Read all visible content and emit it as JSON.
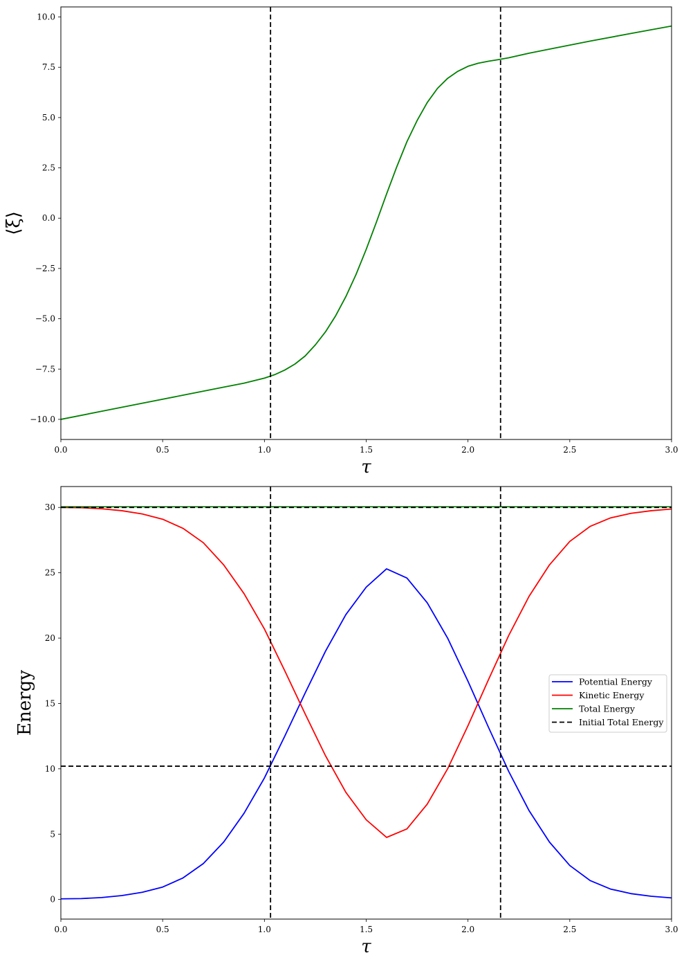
{
  "chart_data": [
    {
      "type": "line",
      "xlabel": "τ",
      "ylabel": "⟨ξ⟩",
      "xlim": [
        0.0,
        3.0
      ],
      "ylim": [
        -11.0,
        10.5
      ],
      "xticks": [
        0.0,
        0.5,
        1.0,
        1.5,
        2.0,
        2.5,
        3.0
      ],
      "xtick_labels": [
        "0.0",
        "0.5",
        "1.0",
        "1.5",
        "2.0",
        "2.5",
        "3.0"
      ],
      "yticks": [
        -10.0,
        -7.5,
        -5.0,
        -2.5,
        0.0,
        2.5,
        5.0,
        7.5,
        10.0
      ],
      "ytick_labels": [
        "−10.0",
        "−7.5",
        "−5.0",
        "−2.5",
        "0.0",
        "2.5",
        "5.0",
        "7.5",
        "10.0"
      ],
      "vlines": [
        1.03,
        2.16
      ],
      "grid": false,
      "series": [
        {
          "color": "#008000",
          "x": [
            0.0,
            0.2,
            0.4,
            0.6,
            0.8,
            0.9,
            1.0,
            1.05,
            1.1,
            1.15,
            1.2,
            1.25,
            1.3,
            1.35,
            1.4,
            1.45,
            1.5,
            1.55,
            1.6,
            1.65,
            1.7,
            1.75,
            1.8,
            1.85,
            1.9,
            1.95,
            2.0,
            2.05,
            2.1,
            2.15,
            2.2,
            2.3,
            2.4,
            2.6,
            2.8,
            3.0
          ],
          "y": [
            -10.0,
            -9.6,
            -9.2,
            -8.8,
            -8.4,
            -8.2,
            -7.95,
            -7.78,
            -7.55,
            -7.25,
            -6.85,
            -6.3,
            -5.65,
            -4.85,
            -3.9,
            -2.8,
            -1.55,
            -0.2,
            1.2,
            2.55,
            3.8,
            4.85,
            5.75,
            6.45,
            6.95,
            7.3,
            7.55,
            7.7,
            7.8,
            7.88,
            7.97,
            8.2,
            8.4,
            8.8,
            9.18,
            9.55
          ]
        }
      ]
    },
    {
      "type": "line",
      "xlabel": "τ",
      "ylabel": "Energy",
      "xlim": [
        0.0,
        3.0
      ],
      "ylim": [
        -1.5,
        31.6
      ],
      "xticks": [
        0.0,
        0.5,
        1.0,
        1.5,
        2.0,
        2.5,
        3.0
      ],
      "xtick_labels": [
        "0.0",
        "0.5",
        "1.0",
        "1.5",
        "2.0",
        "2.5",
        "3.0"
      ],
      "yticks": [
        0,
        5,
        10,
        15,
        20,
        25,
        30
      ],
      "ytick_labels": [
        "0",
        "5",
        "10",
        "15",
        "20",
        "25",
        "30"
      ],
      "vlines": [
        1.03,
        2.16
      ],
      "hlines": [
        10.2
      ],
      "grid": false,
      "legend_position": "center-right",
      "series": [
        {
          "name": "Potential Energy",
          "color": "#0000ff",
          "style": "solid",
          "x": [
            0.0,
            0.1,
            0.2,
            0.3,
            0.4,
            0.5,
            0.6,
            0.7,
            0.8,
            0.9,
            1.0,
            1.1,
            1.2,
            1.3,
            1.4,
            1.5,
            1.6,
            1.7,
            1.8,
            1.9,
            2.0,
            2.1,
            2.2,
            2.3,
            2.4,
            2.5,
            2.6,
            2.7,
            2.8,
            2.9,
            3.0
          ],
          "y": [
            0.05,
            0.07,
            0.15,
            0.3,
            0.55,
            0.95,
            1.65,
            2.75,
            4.4,
            6.6,
            9.3,
            12.5,
            15.8,
            19.0,
            21.8,
            23.9,
            25.3,
            24.6,
            22.7,
            20.0,
            16.7,
            13.2,
            9.8,
            6.8,
            4.4,
            2.6,
            1.45,
            0.8,
            0.45,
            0.25,
            0.12
          ]
        },
        {
          "name": "Kinetic Energy",
          "color": "#ff0000",
          "style": "solid",
          "x": [
            0.0,
            0.1,
            0.2,
            0.3,
            0.4,
            0.5,
            0.6,
            0.7,
            0.8,
            0.9,
            1.0,
            1.1,
            1.2,
            1.3,
            1.4,
            1.5,
            1.6,
            1.7,
            1.8,
            1.9,
            2.0,
            2.1,
            2.2,
            2.3,
            2.4,
            2.5,
            2.6,
            2.7,
            2.8,
            2.9,
            3.0
          ],
          "y": [
            30.0,
            29.98,
            29.9,
            29.75,
            29.5,
            29.1,
            28.4,
            27.3,
            25.6,
            23.4,
            20.7,
            17.5,
            14.2,
            11.0,
            8.2,
            6.1,
            4.75,
            5.4,
            7.3,
            10.0,
            13.3,
            16.8,
            20.2,
            23.2,
            25.6,
            27.4,
            28.55,
            29.2,
            29.55,
            29.75,
            29.88
          ]
        },
        {
          "name": "Total Energy",
          "color": "#008000",
          "style": "solid",
          "x": [
            0.0,
            3.0
          ],
          "y": [
            30.05,
            30.05
          ]
        },
        {
          "name": "Initial Total Energy",
          "color": "#000000",
          "style": "dashed",
          "x": [
            0.0,
            3.0
          ],
          "y": [
            30.0,
            30.0
          ]
        }
      ]
    }
  ]
}
